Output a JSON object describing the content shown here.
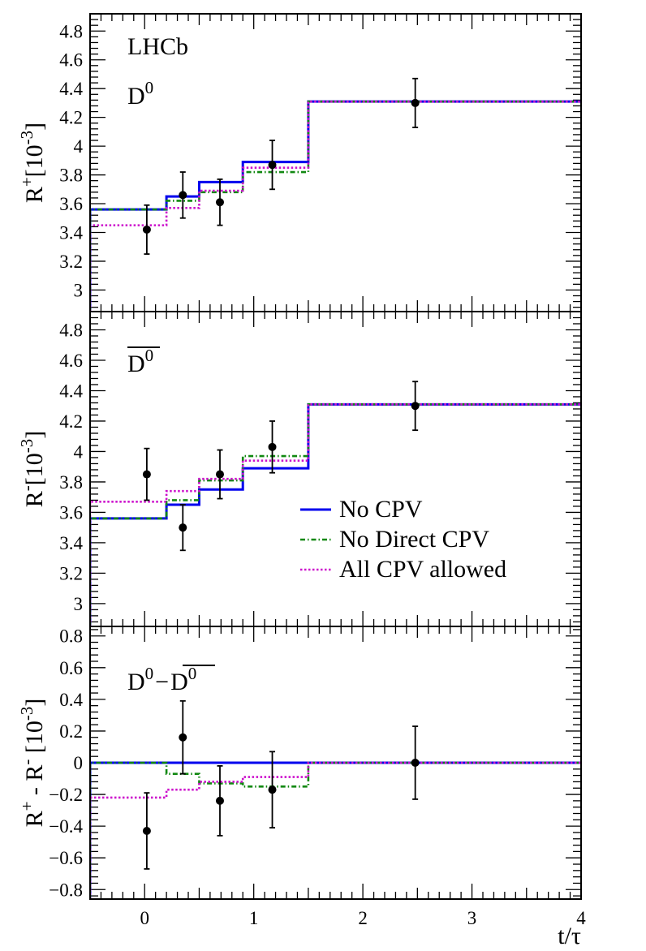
{
  "chart_data": [
    {
      "type": "line",
      "panel": "top",
      "experiment": "LHCb",
      "label": "D",
      "label_sup": "0",
      "label_bar": false,
      "ylabel_main": "R",
      "ylabel_sup": "+",
      "ylabel_unit": "[10",
      "ylabel_unit_sup": "-3",
      "ylabel_close": "]",
      "ylim": [
        2.85,
        4.92
      ],
      "yticks": [
        3,
        3.2,
        3.4,
        3.6,
        3.8,
        4,
        4.2,
        4.4,
        4.6,
        4.8
      ],
      "ytick_labels": [
        "3",
        "3.2",
        "3.4",
        "3.6",
        "3.8",
        "4",
        "4.2",
        "4.4",
        "4.6",
        "4.8"
      ],
      "xlim": [
        -0.5,
        4.0
      ],
      "bin_edges": [
        -0.5,
        0.2,
        0.5,
        0.9,
        1.5,
        4.0
      ],
      "series": [
        {
          "name": "No CPV",
          "color": "#0000ee",
          "style": "solid",
          "values": [
            3.56,
            3.65,
            3.75,
            3.89,
            4.31
          ]
        },
        {
          "name": "No Direct CPV",
          "color": "#118811",
          "style": "dashdot",
          "values": [
            3.56,
            3.62,
            3.68,
            3.82,
            4.31
          ]
        },
        {
          "name": "All CPV allowed",
          "color": "#cc11cc",
          "style": "dotted",
          "values": [
            3.45,
            3.57,
            3.69,
            3.85,
            4.31
          ]
        }
      ],
      "points": [
        {
          "x": 0.02,
          "y": 3.42,
          "err": 0.17
        },
        {
          "x": 0.35,
          "y": 3.66,
          "err": 0.16
        },
        {
          "x": 0.69,
          "y": 3.61,
          "err": 0.16
        },
        {
          "x": 1.17,
          "y": 3.87,
          "err": 0.17
        },
        {
          "x": 2.48,
          "y": 4.3,
          "err": 0.17
        }
      ]
    },
    {
      "type": "line",
      "panel": "middle",
      "label": "D",
      "label_sup": "0",
      "label_bar": true,
      "ylabel_main": "R",
      "ylabel_sup": "-",
      "ylabel_unit": "[10",
      "ylabel_unit_sup": "-3",
      "ylabel_close": "]",
      "ylim": [
        2.85,
        4.92
      ],
      "yticks": [
        3,
        3.2,
        3.4,
        3.6,
        3.8,
        4,
        4.2,
        4.4,
        4.6,
        4.8
      ],
      "ytick_labels": [
        "3",
        "3.2",
        "3.4",
        "3.6",
        "3.8",
        "4",
        "4.2",
        "4.4",
        "4.6",
        "4.8"
      ],
      "xlim": [
        -0.5,
        4.0
      ],
      "bin_edges": [
        -0.5,
        0.2,
        0.5,
        0.9,
        1.5,
        4.0
      ],
      "series": [
        {
          "name": "No CPV",
          "color": "#0000ee",
          "style": "solid",
          "values": [
            3.56,
            3.65,
            3.75,
            3.89,
            4.31
          ]
        },
        {
          "name": "No Direct CPV",
          "color": "#118811",
          "style": "dashdot",
          "values": [
            3.56,
            3.68,
            3.81,
            3.97,
            4.31
          ]
        },
        {
          "name": "All CPV allowed",
          "color": "#cc11cc",
          "style": "dotted",
          "values": [
            3.67,
            3.74,
            3.82,
            3.94,
            4.31
          ]
        }
      ],
      "points": [
        {
          "x": 0.02,
          "y": 3.85,
          "err": 0.17
        },
        {
          "x": 0.35,
          "y": 3.5,
          "err": 0.15
        },
        {
          "x": 0.69,
          "y": 3.85,
          "err": 0.16
        },
        {
          "x": 1.17,
          "y": 4.03,
          "err": 0.17
        },
        {
          "x": 2.48,
          "y": 4.3,
          "err": 0.16
        }
      ],
      "legend": {
        "position": "lower-right",
        "entries": [
          "No CPV",
          "No Direct CPV",
          "All CPV allowed"
        ]
      }
    },
    {
      "type": "line",
      "panel": "bottom",
      "label": "D",
      "label_sup": "0",
      "label_minus": "−",
      "label2": "D",
      "label2_sup": "0",
      "label2_bar": true,
      "ylabel_main": "R",
      "ylabel_sup": "+",
      "ylabel_mid": " - R",
      "ylabel_mid_sup": "-",
      "ylabel_unit": " [10",
      "ylabel_unit_sup": "-3",
      "ylabel_close": "]",
      "ylim": [
        -0.86,
        0.86
      ],
      "yticks": [
        -0.8,
        -0.6,
        -0.4,
        -0.2,
        0,
        0.2,
        0.4,
        0.6,
        0.8
      ],
      "ytick_labels": [
        "−0.8",
        "−0.6",
        "−0.4",
        "−0.2",
        "0",
        "0.2",
        "0.4",
        "0.6",
        "0.8"
      ],
      "xlim": [
        -0.5,
        4.0
      ],
      "xticks": [
        0,
        1,
        2,
        3,
        4
      ],
      "xtick_labels": [
        "0",
        "1",
        "2",
        "3",
        "4"
      ],
      "xlabel": "t/τ",
      "bin_edges": [
        -0.5,
        0.2,
        0.5,
        0.9,
        1.5,
        4.0
      ],
      "series": [
        {
          "name": "No CPV",
          "color": "#0000ee",
          "style": "solid",
          "values": [
            0.0,
            0.0,
            0.0,
            0.0,
            0.0
          ]
        },
        {
          "name": "No Direct CPV",
          "color": "#118811",
          "style": "dashdot",
          "values": [
            0.0,
            -0.07,
            -0.13,
            -0.15,
            0.0
          ]
        },
        {
          "name": "All CPV allowed",
          "color": "#cc11cc",
          "style": "dotted",
          "values": [
            -0.22,
            -0.17,
            -0.12,
            -0.09,
            0.0
          ]
        }
      ],
      "points": [
        {
          "x": 0.02,
          "y": -0.43,
          "err": 0.24
        },
        {
          "x": 0.35,
          "y": 0.16,
          "err": 0.23
        },
        {
          "x": 0.69,
          "y": -0.24,
          "err": 0.22
        },
        {
          "x": 1.17,
          "y": -0.17,
          "err": 0.24
        },
        {
          "x": 2.48,
          "y": 0.0,
          "err": 0.23
        }
      ]
    }
  ]
}
